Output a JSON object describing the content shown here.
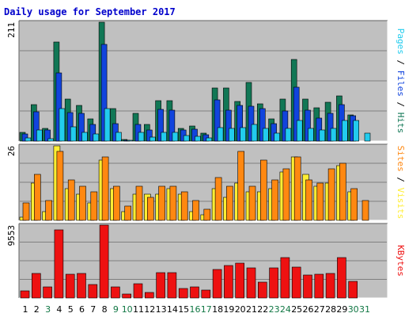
{
  "chart_data": {
    "type": "bar",
    "title": "Daily usage for September 2017",
    "categories": [
      "1",
      "2",
      "3",
      "4",
      "5",
      "6",
      "7",
      "8",
      "9",
      "10",
      "11",
      "12",
      "13",
      "14",
      "15",
      "16",
      "17",
      "18",
      "19",
      "20",
      "21",
      "22",
      "23",
      "24",
      "25",
      "26",
      "27",
      "28",
      "29",
      "30",
      "31"
    ],
    "weekend_days": [
      "3",
      "9",
      "10",
      "16",
      "17",
      "23",
      "24",
      "30",
      "31"
    ],
    "colors": {
      "hits": "#117755",
      "files": "#1144dd",
      "pages": "#22ccee",
      "visits": "#ffee33",
      "sites": "#ff8811",
      "kbytes": "#ee1111",
      "weekday_tick": "#000000",
      "weekend_tick": "#117744",
      "plot_bg": "#c0c0c0",
      "grid": "#808080",
      "title": "#0000cc"
    },
    "panels": [
      {
        "id": "hits-files-pages",
        "ymax_label": "211",
        "ylim": [
          0,
          211
        ],
        "side_label": [
          {
            "text": "Pages",
            "color": "#22ccee"
          },
          {
            "text": " / ",
            "color": "#000000"
          },
          {
            "text": "Files",
            "color": "#1144dd"
          },
          {
            "text": " / ",
            "color": "#000000"
          },
          {
            "text": "Hits",
            "color": "#117755"
          }
        ],
        "series": [
          {
            "name": "Hits",
            "values": [
              16,
              65,
              23,
              176,
              75,
              64,
              40,
              211,
              57,
              3,
              49,
              29,
              72,
              72,
              23,
              27,
              14,
              94,
              94,
              71,
              104,
              66,
              39,
              75,
              145,
              75,
              59,
              69,
              80,
              47,
              0
            ]
          },
          {
            "name": "Files",
            "values": [
              12,
              52,
              19,
              121,
              51,
              49,
              30,
              171,
              31,
              2,
              30,
              20,
              56,
              55,
              20,
              21,
              11,
              73,
              55,
              63,
              62,
              57,
              31,
              54,
              95,
              55,
              41,
              49,
              65,
              45,
              0
            ]
          },
          {
            "name": "Pages",
            "values": [
              6,
              19,
              4,
              57,
              25,
              16,
              13,
              57,
              16,
              1,
              16,
              7,
              16,
              16,
              10,
              9,
              5,
              24,
              22,
              24,
              29,
              23,
              14,
              23,
              37,
              23,
              19,
              23,
              36,
              37,
              14
            ]
          }
        ]
      },
      {
        "id": "visits-sites",
        "ymax_label": "26",
        "ylim": [
          0,
          26
        ],
        "side_label": [
          {
            "text": "Sites",
            "color": "#ff8811"
          },
          {
            "text": " / ",
            "color": "#000000"
          },
          {
            "text": "Visits",
            "color": "#ffee33"
          }
        ],
        "series": [
          {
            "name": "Visits",
            "values": [
              1,
              13,
              3,
              26,
              11,
              9,
              6,
              21,
              11,
              3,
              9,
              9,
              9,
              11,
              9,
              3,
              2,
              11,
              8,
              13,
              10,
              10,
              11,
              17,
              22,
              16,
              12,
              13,
              19,
              10,
              0
            ]
          },
          {
            "name": "Sites",
            "values": [
              6,
              16,
              7,
              24,
              14,
              12,
              10,
              22,
              12,
              5,
              12,
              8,
              12,
              12,
              10,
              7,
              4,
              15,
              12,
              24,
              12,
              21,
              14,
              18,
              22,
              14,
              13,
              18,
              20,
              11,
              7
            ]
          }
        ]
      },
      {
        "id": "kbytes",
        "ymax_label": "9553",
        "ylim": [
          0,
          9553
        ],
        "side_label": [
          {
            "text": "KBytes",
            "color": "#ee1111"
          }
        ],
        "series": [
          {
            "name": "KBytes",
            "values": [
              982,
              3183,
              1434,
              8909,
              3131,
              3268,
              1782,
              9553,
              1459,
              508,
              1836,
              758,
              3306,
              3288,
              1276,
              1502,
              1086,
              3710,
              4287,
              4577,
              3901,
              2099,
              3953,
              5256,
              4042,
              2961,
              3110,
              3204,
              5274,
              2139,
              0
            ]
          }
        ]
      }
    ]
  }
}
